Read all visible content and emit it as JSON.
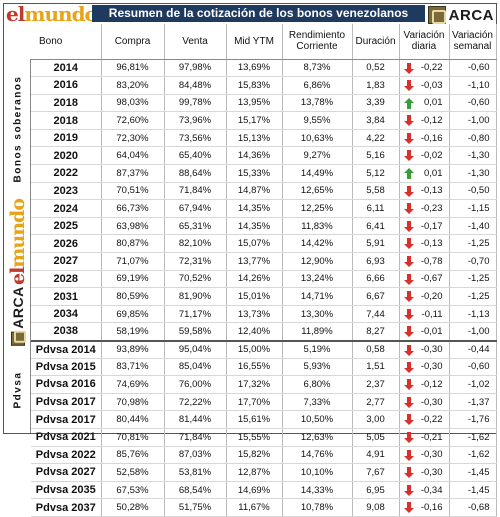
{
  "header": {
    "logo_left": {
      "part1": "el",
      "part2": "mundo"
    },
    "title": "Resumen de la cotización de los bonos venezolanos",
    "logo_right": "ARCA"
  },
  "side_labels": {
    "soberanos": "Bonos soberanos",
    "pdvsa": "Pdvsa",
    "logo_mundo": {
      "part1": "el",
      "part2": "mundo"
    },
    "logo_arca": "ARCA"
  },
  "columns": [
    "Bono",
    "Compra",
    "Venta",
    "Mid YTM",
    "Rendimiento Corriente",
    "Duración",
    "Variación diaria",
    "Variación semanal"
  ],
  "colors": {
    "title_bg": "#1f3a5f",
    "down": "#d9302c",
    "up": "#3a9d3a",
    "logo_red": "#c0392b",
    "logo_gold": "#e8a317"
  },
  "rows": [
    {
      "bono": "2014",
      "compra": "96,81%",
      "venta": "97,98%",
      "ytm": "13,69%",
      "rc": "8,73%",
      "dur": "0,52",
      "vd": "-0,22",
      "vd_dir": "down",
      "vs": "-0,60"
    },
    {
      "bono": "2016",
      "compra": "83,20%",
      "venta": "84,48%",
      "ytm": "15,83%",
      "rc": "6,86%",
      "dur": "1,83",
      "vd": "-0,03",
      "vd_dir": "down",
      "vs": "-1,10"
    },
    {
      "bono": "2018",
      "compra": "98,03%",
      "venta": "99,78%",
      "ytm": "13,95%",
      "rc": "13,78%",
      "dur": "3,39",
      "vd": "0,01",
      "vd_dir": "up",
      "vs": "-0,60"
    },
    {
      "bono": "2018",
      "compra": "72,60%",
      "venta": "73,96%",
      "ytm": "15,17%",
      "rc": "9,55%",
      "dur": "3,84",
      "vd": "-0,12",
      "vd_dir": "down",
      "vs": "-1,00"
    },
    {
      "bono": "2019",
      "compra": "72,30%",
      "venta": "73,56%",
      "ytm": "15,13%",
      "rc": "10,63%",
      "dur": "4,22",
      "vd": "-0,16",
      "vd_dir": "down",
      "vs": "-0,80"
    },
    {
      "bono": "2020",
      "compra": "64,04%",
      "venta": "65,40%",
      "ytm": "14,36%",
      "rc": "9,27%",
      "dur": "5,16",
      "vd": "-0,02",
      "vd_dir": "down",
      "vs": "-1,30"
    },
    {
      "bono": "2022",
      "compra": "87,37%",
      "venta": "88,64%",
      "ytm": "15,33%",
      "rc": "14,49%",
      "dur": "5,12",
      "vd": "0,01",
      "vd_dir": "up",
      "vs": "-1,30"
    },
    {
      "bono": "2023",
      "compra": "70,51%",
      "venta": "71,84%",
      "ytm": "14,87%",
      "rc": "12,65%",
      "dur": "5,58",
      "vd": "-0,13",
      "vd_dir": "down",
      "vs": "-0,50"
    },
    {
      "bono": "2024",
      "compra": "66,73%",
      "venta": "67,94%",
      "ytm": "14,35%",
      "rc": "12,25%",
      "dur": "6,11",
      "vd": "-0,23",
      "vd_dir": "down",
      "vs": "-1,15"
    },
    {
      "bono": "2025",
      "compra": "63,98%",
      "venta": "65,31%",
      "ytm": "14,35%",
      "rc": "11,83%",
      "dur": "6,41",
      "vd": "-0,17",
      "vd_dir": "down",
      "vs": "-1,40"
    },
    {
      "bono": "2026",
      "compra": "80,87%",
      "venta": "82,10%",
      "ytm": "15,07%",
      "rc": "14,42%",
      "dur": "5,91",
      "vd": "-0,13",
      "vd_dir": "down",
      "vs": "-1,25"
    },
    {
      "bono": "2027",
      "compra": "71,07%",
      "venta": "72,31%",
      "ytm": "13,77%",
      "rc": "12,90%",
      "dur": "6,93",
      "vd": "-0,78",
      "vd_dir": "down",
      "vs": "-0,70"
    },
    {
      "bono": "2028",
      "compra": "69,19%",
      "venta": "70,52%",
      "ytm": "14,26%",
      "rc": "13,24%",
      "dur": "6,66",
      "vd": "-0,67",
      "vd_dir": "down",
      "vs": "-1,25"
    },
    {
      "bono": "2031",
      "compra": "80,59%",
      "venta": "81,90%",
      "ytm": "15,01%",
      "rc": "14,71%",
      "dur": "6,67",
      "vd": "-0,20",
      "vd_dir": "down",
      "vs": "-1,25"
    },
    {
      "bono": "2034",
      "compra": "69,85%",
      "venta": "71,17%",
      "ytm": "13,73%",
      "rc": "13,30%",
      "dur": "7,44",
      "vd": "-0,11",
      "vd_dir": "down",
      "vs": "-1,13"
    },
    {
      "bono": "2038",
      "compra": "58,19%",
      "venta": "59,58%",
      "ytm": "12,40%",
      "rc": "11,89%",
      "dur": "8,27",
      "vd": "-0,01",
      "vd_dir": "down",
      "vs": "-1,00"
    },
    {
      "bono": "Pdvsa 2014",
      "compra": "93,89%",
      "venta": "95,04%",
      "ytm": "15,00%",
      "rc": "5,19%",
      "dur": "0,58",
      "vd": "-0,30",
      "vd_dir": "down",
      "vs": "-0,44"
    },
    {
      "bono": "Pdvsa 2015",
      "compra": "83,71%",
      "venta": "85,04%",
      "ytm": "16,55%",
      "rc": "5,93%",
      "dur": "1,51",
      "vd": "-0,30",
      "vd_dir": "down",
      "vs": "-0,60"
    },
    {
      "bono": "Pdvsa 2016",
      "compra": "74,69%",
      "venta": "76,00%",
      "ytm": "17,32%",
      "rc": "6,80%",
      "dur": "2,37",
      "vd": "-0,12",
      "vd_dir": "down",
      "vs": "-1,02"
    },
    {
      "bono": "Pdvsa 2017",
      "compra": "70,98%",
      "venta": "72,22%",
      "ytm": "17,70%",
      "rc": "7,33%",
      "dur": "2,77",
      "vd": "-0,30",
      "vd_dir": "down",
      "vs": "-1,37"
    },
    {
      "bono": "Pdvsa 2017",
      "compra": "80,44%",
      "venta": "81,44%",
      "ytm": "15,61%",
      "rc": "10,50%",
      "dur": "3,00",
      "vd": "-0,22",
      "vd_dir": "down",
      "vs": "-1,76"
    },
    {
      "bono": "Pdvsa 2021",
      "compra": "70,81%",
      "venta": "71,84%",
      "ytm": "15,55%",
      "rc": "12,63%",
      "dur": "5,05",
      "vd": "-0,21",
      "vd_dir": "down",
      "vs": "-1,62"
    },
    {
      "bono": "Pdvsa 2022",
      "compra": "85,76%",
      "venta": "87,03%",
      "ytm": "15,82%",
      "rc": "14,76%",
      "dur": "4,91",
      "vd": "-0,30",
      "vd_dir": "down",
      "vs": "-1,62"
    },
    {
      "bono": "Pdvsa 2027",
      "compra": "52,58%",
      "venta": "53,81%",
      "ytm": "12,87%",
      "rc": "10,10%",
      "dur": "7,67",
      "vd": "-0,30",
      "vd_dir": "down",
      "vs": "-1,45"
    },
    {
      "bono": "Pdvsa 2035",
      "compra": "67,53%",
      "venta": "68,54%",
      "ytm": "14,69%",
      "rc": "14,33%",
      "dur": "6,95",
      "vd": "-0,34",
      "vd_dir": "down",
      "vs": "-1,45"
    },
    {
      "bono": "Pdvsa 2037",
      "compra": "50,28%",
      "venta": "51,75%",
      "ytm": "11,67%",
      "rc": "10,78%",
      "dur": "9,08",
      "vd": "-0,16",
      "vd_dir": "down",
      "vs": "-0,68"
    }
  ]
}
